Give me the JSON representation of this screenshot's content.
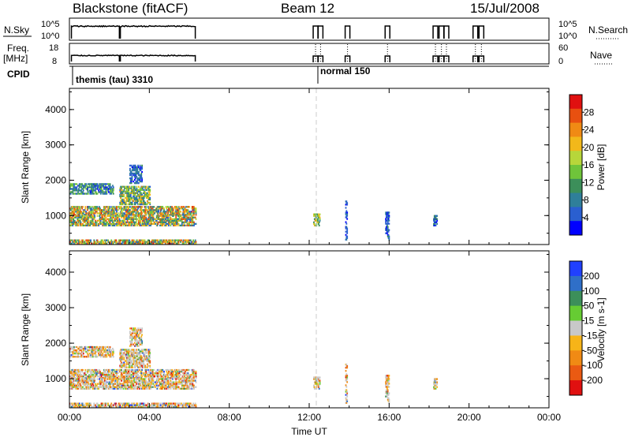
{
  "header": {
    "title": "Blackstone (fitACF)",
    "beam": "Beam 12",
    "date": "15/Jul/2008"
  },
  "strip_labels": {
    "nsky": "N.Sky",
    "nsky_ticks": [
      "10^5",
      "10^0"
    ],
    "nsearch": "N.Search",
    "nsearch_ticks": [
      "10^5",
      "10^0"
    ],
    "freq": "Freq.",
    "freq_unit": "[MHz]",
    "freq_ticks": [
      "18",
      "8"
    ],
    "nave": "Nave",
    "nave_ticks": [
      "60",
      "0"
    ],
    "cpid": "CPID"
  },
  "cpid_modes": [
    {
      "label": "themis (tau) 3310",
      "start_hour": 0.0
    },
    {
      "label": "normal 150",
      "start_hour": 12.4
    }
  ],
  "colors": {
    "power": [
      "#0000ff",
      "#2a5fd0",
      "#2f7f9a",
      "#3c8f5a",
      "#6fc43a",
      "#b7d63a",
      "#f2b81a",
      "#f08a14",
      "#e85010",
      "#e01010"
    ],
    "velocity": [
      "#2040ff",
      "#2f6fc8",
      "#3c8f5a",
      "#66cc33",
      "#c8c8c8",
      "#f7b418",
      "#f08a14",
      "#ea5a12",
      "#e01010"
    ]
  },
  "chart_data": [
    {
      "type": "heatmap",
      "name": "power-panel",
      "xlabel": "",
      "ylabel": "Slant Range [km]",
      "xlim": [
        0,
        24
      ],
      "ylim": [
        180,
        4600
      ],
      "yticks": [
        "1000",
        "2000",
        "3000",
        "4000"
      ],
      "ytick_values": [
        1000,
        2000,
        3000,
        4000
      ],
      "colorbar": {
        "label": "Power [dB]",
        "ticks": [
          "4",
          "8",
          "12",
          "16",
          "20",
          "24",
          "28"
        ],
        "tick_values": [
          4,
          8,
          12,
          16,
          20,
          24,
          28
        ],
        "range": [
          0,
          32
        ]
      },
      "scatter_regions": [
        {
          "t0": 0.0,
          "t1": 6.3,
          "r0": 1000,
          "r1": 1250,
          "vmin": 4,
          "vmax": 30
        },
        {
          "t0": 0.0,
          "t1": 2.2,
          "r0": 1600,
          "r1": 1900,
          "vmin": 2,
          "vmax": 16
        },
        {
          "t0": 0.0,
          "t1": 6.3,
          "r0": 700,
          "r1": 1000,
          "vmin": 4,
          "vmax": 28
        },
        {
          "t0": 2.5,
          "t1": 4.0,
          "r0": 1300,
          "r1": 1800,
          "vmin": 4,
          "vmax": 24
        },
        {
          "t0": 3.0,
          "t1": 3.6,
          "r0": 1900,
          "r1": 2400,
          "vmin": 2,
          "vmax": 10
        },
        {
          "t0": 0.0,
          "t1": 6.3,
          "r0": 190,
          "r1": 320,
          "vmin": 4,
          "vmax": 30
        },
        {
          "t0": 12.2,
          "t1": 12.5,
          "r0": 700,
          "r1": 1050,
          "vmin": 8,
          "vmax": 24
        },
        {
          "t0": 13.8,
          "t1": 13.9,
          "r0": 300,
          "r1": 1400,
          "vmin": 2,
          "vmax": 8
        },
        {
          "t0": 15.8,
          "t1": 16.0,
          "r0": 300,
          "r1": 1100,
          "vmin": 2,
          "vmax": 10
        },
        {
          "t0": 18.2,
          "t1": 18.4,
          "r0": 700,
          "r1": 1000,
          "vmin": 2,
          "vmax": 12
        }
      ]
    },
    {
      "type": "heatmap",
      "name": "velocity-panel",
      "xlabel": "Time UT",
      "ylabel": "Slant Range [km]",
      "xlim": [
        0,
        24
      ],
      "ylim": [
        180,
        4600
      ],
      "xticks": [
        "00:00",
        "04:00",
        "08:00",
        "12:00",
        "16:00",
        "20:00",
        "00:00"
      ],
      "xtick_values": [
        0,
        4,
        8,
        12,
        16,
        20,
        24
      ],
      "yticks": [
        "1000",
        "2000",
        "3000",
        "4000"
      ],
      "ytick_values": [
        1000,
        2000,
        3000,
        4000
      ],
      "colorbar": {
        "label": "Velocity [m s-1]",
        "ticks": [
          "200",
          "100",
          "50",
          "15",
          "-15",
          "-50",
          "-100",
          "-200"
        ],
        "tick_values": [
          200,
          100,
          50,
          15,
          -15,
          -50,
          -100,
          -200
        ]
      }
    }
  ],
  "strips": {
    "nsky_segments": [
      [
        0.1,
        2.5
      ],
      [
        2.55,
        6.3
      ]
    ],
    "isolated_scans": [
      12.2,
      12.45,
      13.8,
      15.8,
      18.2,
      18.5,
      18.75,
      20.2,
      20.5
    ]
  }
}
